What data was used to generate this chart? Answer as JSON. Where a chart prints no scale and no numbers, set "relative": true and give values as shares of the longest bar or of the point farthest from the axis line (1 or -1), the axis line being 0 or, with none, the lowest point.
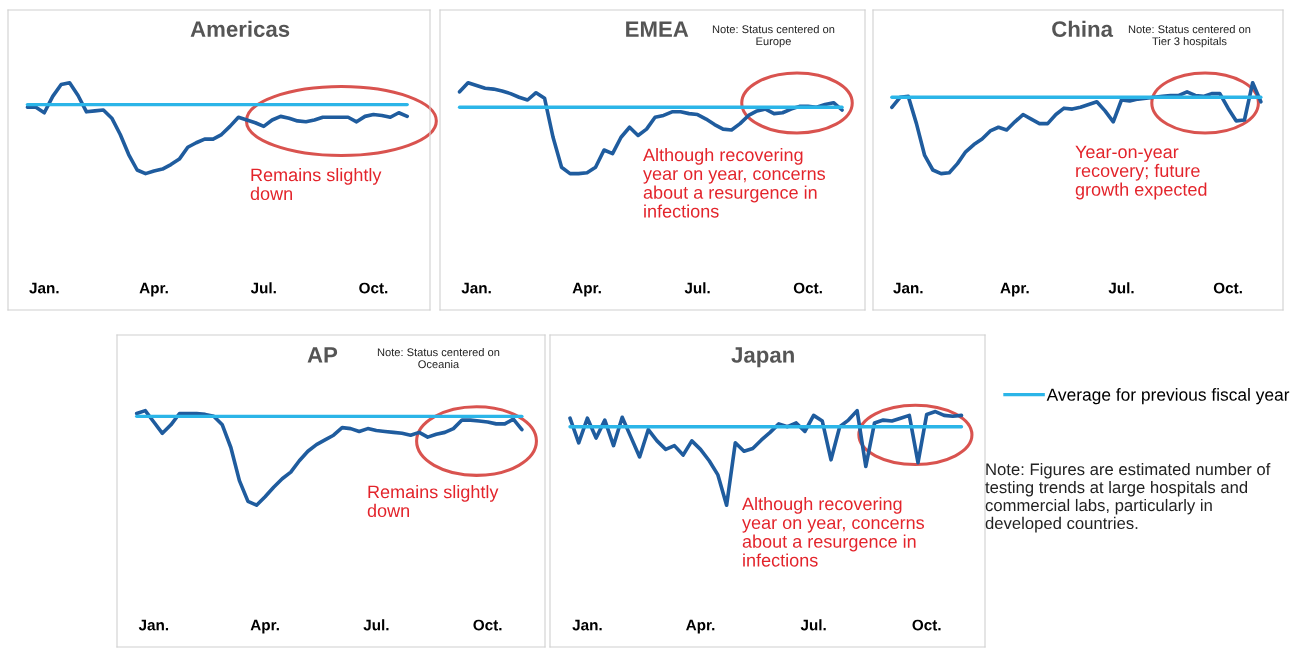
{
  "chart_data": [
    {
      "type": "line",
      "title": "Americas",
      "relative": true,
      "tick_labels": "x",
      "categories": [
        null,
        null,
        "Jan.",
        null,
        null,
        null,
        null,
        null,
        null,
        null,
        null,
        null,
        null,
        null,
        null,
        "Apr.",
        null,
        null,
        null,
        null,
        null,
        null,
        null,
        null,
        null,
        null,
        null,
        null,
        "Jul.",
        null,
        null,
        null,
        null,
        null,
        null,
        null,
        null,
        null,
        null,
        null,
        null,
        "Oct.",
        null,
        null,
        null,
        null
      ],
      "series": [
        {
          "color": "#1f5c9e",
          "values": [
            0.73,
            0.73,
            0.67,
            0.85,
            0.98,
            1.0,
            0.86,
            0.68,
            0.69,
            0.7,
            0.61,
            0.43,
            0.21,
            0.04,
            0,
            0.03,
            0.05,
            0.1,
            0.16,
            0.29,
            0.34,
            0.38,
            0.38,
            0.43,
            0.52,
            0.62,
            0.59,
            0.56,
            0.52,
            0.59,
            0.63,
            0.61,
            0.58,
            0.57,
            0.59,
            0.62,
            0.62,
            0.62,
            0.62,
            0.57,
            0.63,
            0.65,
            0.64,
            0.62,
            0.67,
            0.63
          ]
        },
        {
          "color": "#2bb5e8",
          "values": [
            0.76,
            0.76,
            0.76,
            0.76,
            0.76,
            0.76,
            0.76,
            0.76,
            0.76,
            0.76,
            0.76,
            0.76,
            0.76,
            0.76,
            0.76,
            0.76,
            0.76,
            0.76,
            0.76,
            0.76,
            0.76,
            0.76,
            0.76,
            0.76,
            0.76,
            0.76,
            0.76,
            0.76,
            0.76,
            0.76,
            0.76,
            0.76,
            0.76,
            0.76,
            0.76,
            0.76,
            0.76,
            0.76,
            0.76,
            0.76,
            0.76,
            0.76,
            0.76,
            0.76,
            0.76,
            0.76
          ]
        }
      ],
      "annotations": [
        "Remains slightly down"
      ]
    },
    {
      "type": "line",
      "title": "EMEA",
      "subtitle": "Note: Status centered on Europe",
      "relative": true,
      "tick_labels": "x",
      "categories": [
        null,
        null,
        "Jan.",
        null,
        null,
        null,
        null,
        null,
        null,
        null,
        null,
        null,
        null,
        null,
        null,
        "Apr.",
        null,
        null,
        null,
        null,
        null,
        null,
        null,
        null,
        null,
        null,
        null,
        null,
        "Jul.",
        null,
        null,
        null,
        null,
        null,
        null,
        null,
        null,
        null,
        null,
        null,
        null,
        "Oct.",
        null,
        null,
        null,
        null
      ],
      "series": [
        {
          "color": "#1f5c9e",
          "values": [
            0.9,
            1.0,
            0.97,
            0.94,
            0.93,
            0.91,
            0.88,
            0.84,
            0.81,
            0.89,
            0.83,
            0.4,
            0.07,
            0,
            0,
            0.01,
            0.07,
            0.26,
            0.22,
            0.4,
            0.51,
            0.42,
            0.49,
            0.62,
            0.64,
            0.68,
            0.68,
            0.66,
            0.65,
            0.6,
            0.54,
            0.49,
            0.48,
            0.55,
            0.64,
            0.69,
            0.71,
            0.66,
            0.67,
            0.71,
            0.74,
            0.74,
            0.73,
            0.76,
            0.78,
            0.7
          ]
        },
        {
          "color": "#2bb5e8",
          "values": [
            0.73,
            0.73,
            0.73,
            0.73,
            0.73,
            0.73,
            0.73,
            0.73,
            0.73,
            0.73,
            0.73,
            0.73,
            0.73,
            0.73,
            0.73,
            0.73,
            0.73,
            0.73,
            0.73,
            0.73,
            0.73,
            0.73,
            0.73,
            0.73,
            0.73,
            0.73,
            0.73,
            0.73,
            0.73,
            0.73,
            0.73,
            0.73,
            0.73,
            0.73,
            0.73,
            0.73,
            0.73,
            0.73,
            0.73,
            0.73,
            0.73,
            0.73,
            0.73,
            0.73,
            0.73,
            0.73
          ]
        }
      ],
      "annotations": [
        "Although recovering year on year, concerns about a resurgence in infections"
      ]
    },
    {
      "type": "line",
      "title": "China",
      "subtitle": "Note: Status centered on Tier 3 hospitals",
      "relative": true,
      "tick_labels": "x",
      "categories": [
        null,
        null,
        "Jan.",
        null,
        null,
        null,
        null,
        null,
        null,
        null,
        null,
        null,
        null,
        null,
        null,
        "Apr.",
        null,
        null,
        null,
        null,
        null,
        null,
        null,
        null,
        null,
        null,
        null,
        null,
        "Jul.",
        null,
        null,
        null,
        null,
        null,
        null,
        null,
        null,
        null,
        null,
        null,
        null,
        "Oct.",
        null,
        null,
        null,
        null
      ],
      "series": [
        {
          "color": "#1f5c9e",
          "values": [
            0.73,
            0.84,
            0.85,
            0.55,
            0.2,
            0.04,
            0,
            0.01,
            0.11,
            0.24,
            0.32,
            0.38,
            0.47,
            0.51,
            0.48,
            0.57,
            0.65,
            0.6,
            0.55,
            0.55,
            0.65,
            0.72,
            0.71,
            0.73,
            0.76,
            0.79,
            0.69,
            0.57,
            0.81,
            0.8,
            0.82,
            0.83,
            0.84,
            0.85,
            0.86,
            0.86,
            0.9,
            0.86,
            0.85,
            0.88,
            0.88,
            0.72,
            0.58,
            0.59,
            1.0,
            0.79
          ]
        },
        {
          "color": "#2bb5e8",
          "values": [
            0.84,
            0.84,
            0.84,
            0.84,
            0.84,
            0.84,
            0.84,
            0.84,
            0.84,
            0.84,
            0.84,
            0.84,
            0.84,
            0.84,
            0.84,
            0.84,
            0.84,
            0.84,
            0.84,
            0.84,
            0.84,
            0.84,
            0.84,
            0.84,
            0.84,
            0.84,
            0.84,
            0.84,
            0.84,
            0.84,
            0.84,
            0.84,
            0.84,
            0.84,
            0.84,
            0.84,
            0.84,
            0.84,
            0.84,
            0.84,
            0.84,
            0.84,
            0.84,
            0.84,
            0.84,
            0.84
          ]
        }
      ],
      "annotations": [
        "Year-on-year recovery; future growth expected"
      ]
    },
    {
      "type": "line",
      "title": "AP",
      "subtitle": "Note: Status centered on Oceania",
      "relative": true,
      "tick_labels": "x",
      "categories": [
        null,
        null,
        "Jan.",
        null,
        null,
        null,
        null,
        null,
        null,
        null,
        null,
        null,
        null,
        null,
        null,
        "Apr.",
        null,
        null,
        null,
        null,
        null,
        null,
        null,
        null,
        null,
        null,
        null,
        null,
        "Jul.",
        null,
        null,
        null,
        null,
        null,
        null,
        null,
        null,
        null,
        null,
        null,
        null,
        "Oct.",
        null,
        null,
        null,
        null
      ],
      "series": [
        {
          "color": "#1f5c9e",
          "values": [
            0.97,
            1.0,
            0.88,
            0.76,
            0.85,
            0.97,
            0.97,
            0.97,
            0.96,
            0.94,
            0.85,
            0.61,
            0.26,
            0.04,
            0,
            0.09,
            0.19,
            0.28,
            0.35,
            0.47,
            0.57,
            0.64,
            0.69,
            0.74,
            0.82,
            0.81,
            0.78,
            0.81,
            0.79,
            0.78,
            0.77,
            0.76,
            0.74,
            0.77,
            0.72,
            0.75,
            0.77,
            0.81,
            0.9,
            0.9,
            0.89,
            0.88,
            0.86,
            0.86,
            0.91,
            0.8
          ]
        },
        {
          "color": "#2bb5e8",
          "values": [
            0.94,
            0.94,
            0.94,
            0.94,
            0.94,
            0.94,
            0.94,
            0.94,
            0.94,
            0.94,
            0.94,
            0.94,
            0.94,
            0.94,
            0.94,
            0.94,
            0.94,
            0.94,
            0.94,
            0.94,
            0.94,
            0.94,
            0.94,
            0.94,
            0.94,
            0.94,
            0.94,
            0.94,
            0.94,
            0.94,
            0.94,
            0.94,
            0.94,
            0.94,
            0.94,
            0.94,
            0.94,
            0.94,
            0.94,
            0.94,
            0.94,
            0.94,
            0.94,
            0.94,
            0.94,
            0.94
          ]
        }
      ],
      "annotations": [
        "Remains slightly down"
      ]
    },
    {
      "type": "line",
      "title": "Japan",
      "relative": true,
      "tick_labels": "x",
      "legend": "right",
      "categories": [
        null,
        null,
        "Jan.",
        null,
        null,
        null,
        null,
        null,
        null,
        null,
        null,
        null,
        null,
        null,
        null,
        "Apr.",
        null,
        null,
        null,
        null,
        null,
        null,
        null,
        null,
        null,
        null,
        null,
        null,
        "Jul.",
        null,
        null,
        null,
        null,
        null,
        null,
        null,
        null,
        null,
        null,
        null,
        null,
        "Oct.",
        null,
        null,
        null,
        null
      ],
      "series": [
        {
          "color": "#1f5c9e",
          "values": [
            0.92,
            0.66,
            0.92,
            0.71,
            0.9,
            0.63,
            0.93,
            0.72,
            0.51,
            0.8,
            0.68,
            0.59,
            0.63,
            0.53,
            0.68,
            0.59,
            0.47,
            0.32,
            0,
            0.66,
            0.57,
            0.6,
            0.69,
            0.77,
            0.86,
            0.83,
            0.87,
            0.78,
            0.95,
            0.89,
            0.48,
            0.83,
            0.9,
            1.0,
            0.41,
            0.87,
            0.9,
            0.89,
            0.92,
            0.95,
            0.45,
            0.96,
            0.99,
            0.95,
            0.94,
            0.95
          ]
        },
        {
          "name": "Average for previous fiscal year",
          "color": "#2bb5e8",
          "values": [
            0.83,
            0.83,
            0.83,
            0.83,
            0.83,
            0.83,
            0.83,
            0.83,
            0.83,
            0.83,
            0.83,
            0.83,
            0.83,
            0.83,
            0.83,
            0.83,
            0.83,
            0.83,
            0.83,
            0.83,
            0.83,
            0.83,
            0.83,
            0.83,
            0.83,
            0.83,
            0.83,
            0.83,
            0.83,
            0.83,
            0.83,
            0.83,
            0.83,
            0.83,
            0.83,
            0.83,
            0.83,
            0.83,
            0.83,
            0.83,
            0.83,
            0.83,
            0.83,
            0.83,
            0.83,
            0.83
          ]
        }
      ],
      "annotations": [
        "Although recovering year on year, concerns about a resurgence in infections",
        "Note: Figures are estimated number of testing trends at large hospitals and commercial labs, particularly in developed countries."
      ]
    }
  ]
}
